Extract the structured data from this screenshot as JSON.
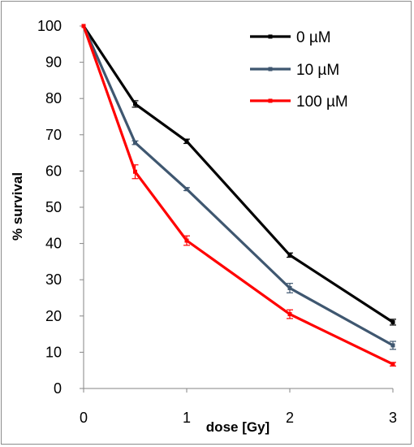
{
  "chart_data": {
    "type": "line",
    "title": "",
    "xlabel": "dose [Gy]",
    "ylabel": "% survival",
    "x": [
      0,
      0.5,
      1,
      2,
      3
    ],
    "x_ticks": [
      "0",
      "1",
      "2",
      "3"
    ],
    "y_ticks": [
      "0",
      "10",
      "20",
      "30",
      "40",
      "50",
      "60",
      "70",
      "80",
      "90",
      "100"
    ],
    "xlim": [
      0,
      3
    ],
    "ylim": [
      0,
      100
    ],
    "grid": false,
    "legend_position": "top-right",
    "series": [
      {
        "name": "0 µM",
        "color": "#000000",
        "values": [
          100,
          78.5,
          68.2,
          36.8,
          18.3
        ],
        "errors": [
          0,
          0.9,
          0.6,
          0.6,
          0.8
        ]
      },
      {
        "name": "10 µM",
        "color": "#3f5770",
        "values": [
          100,
          67.8,
          55.0,
          27.7,
          11.9
        ],
        "errors": [
          0,
          0.5,
          0.4,
          1.3,
          1.1
        ]
      },
      {
        "name": "100 µM",
        "color": "#ff0000",
        "values": [
          100,
          59.8,
          40.8,
          20.5,
          6.7
        ],
        "errors": [
          0,
          1.9,
          1.3,
          1.2,
          0.5
        ]
      }
    ]
  }
}
